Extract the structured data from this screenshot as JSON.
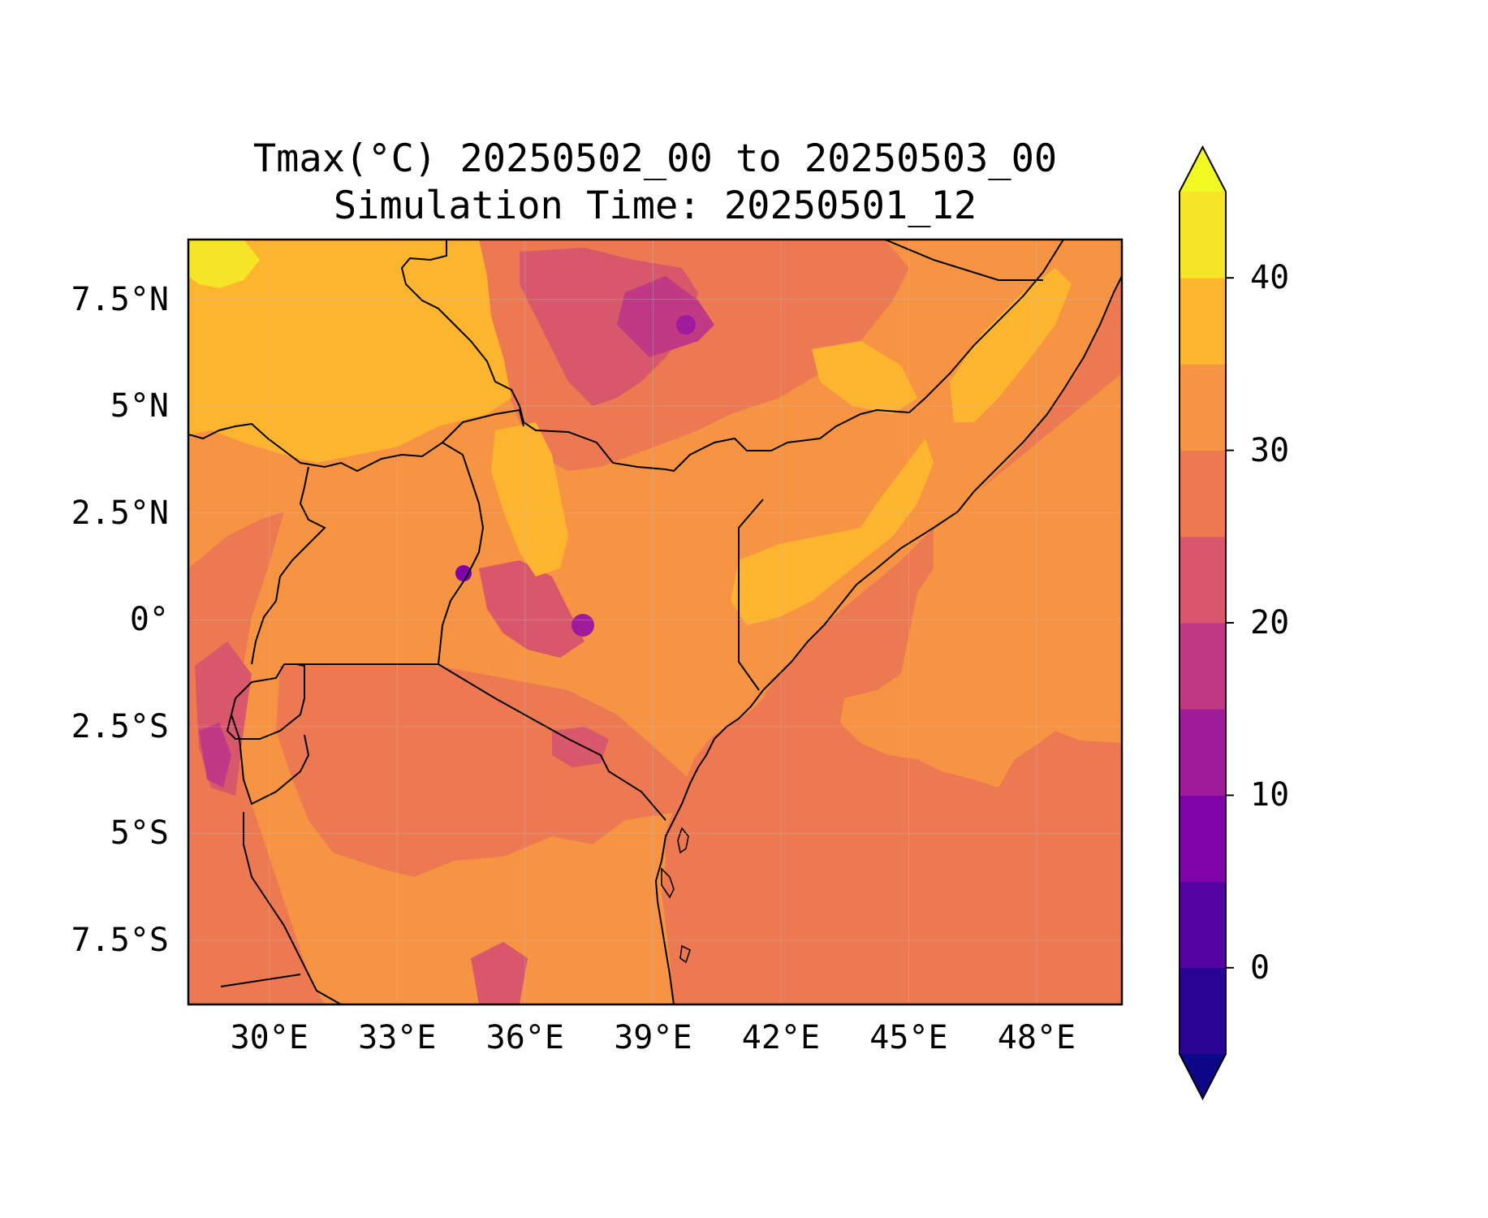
{
  "map": {
    "title_line1": "Tmax(°C) 20250502_00 to 20250503_00",
    "title_line2": "Simulation Time: 20250501_12",
    "lat_ticks": [
      "7.5°N",
      "5°N",
      "2.5°N",
      "0°",
      "2.5°S",
      "5°S",
      "7.5°S"
    ],
    "lon_ticks": [
      "30°E",
      "33°E",
      "36°E",
      "39°E",
      "42°E",
      "45°E",
      "48°E"
    ],
    "lat_values": [
      7.5,
      5,
      2.5,
      0,
      -2.5,
      -5,
      -7.5
    ],
    "lon_values": [
      30,
      33,
      36,
      39,
      42,
      45,
      48
    ],
    "extent": {
      "lon": [
        28.1,
        50.0
      ],
      "lat": [
        -9.0,
        8.9
      ]
    },
    "variable": "Tmax",
    "unit": "°C"
  },
  "colorbar": {
    "ticks": [
      "0",
      "10",
      "20",
      "30",
      "40"
    ],
    "tick_values": [
      0,
      10,
      20,
      30,
      40
    ],
    "levels": [
      -5,
      0,
      5,
      10,
      15,
      20,
      25,
      30,
      35,
      40,
      45
    ],
    "extend": "both",
    "colors": [
      "#0d0887",
      "#2a0593",
      "#5602a2",
      "#7e03a8",
      "#a01a9c",
      "#bf3984",
      "#d8576b",
      "#ed7953",
      "#f79443",
      "#fdb42f",
      "#f6e526",
      "#f0f921"
    ]
  }
}
